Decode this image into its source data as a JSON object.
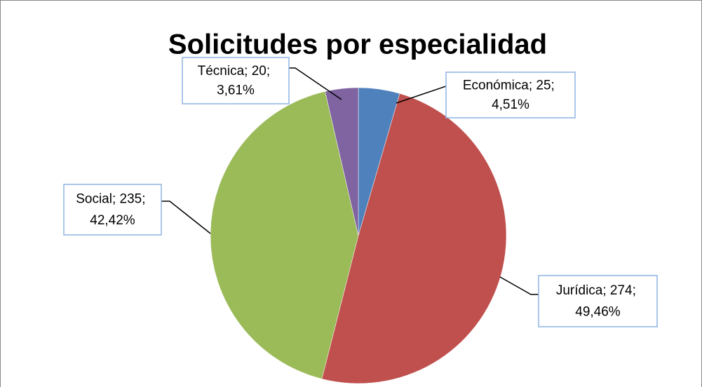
{
  "chart_data": {
    "type": "pie",
    "title": "Solicitudes por especialidad",
    "values": [
      25,
      274,
      235,
      20
    ],
    "value_labels": [
      "Económica; 25; 4,51%",
      "Jurídica; 274; 49,46%",
      "Social; 235; 42,42%",
      "Técnica; 20; 3,61%"
    ],
    "colors": [
      "#4f81bd",
      "#c0504d",
      "#9bbb59",
      "#8064a2"
    ]
  }
}
